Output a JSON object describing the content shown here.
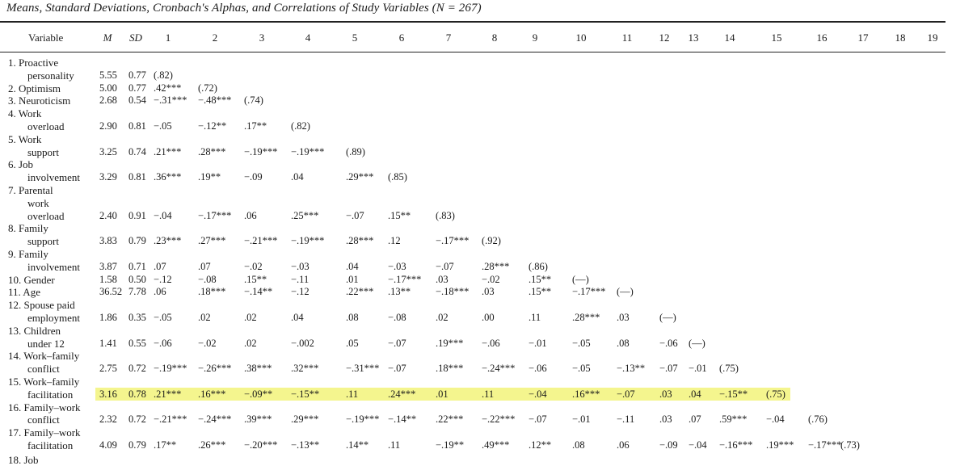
{
  "caption": "Means, Standard Deviations, Cronbach's Alphas, and Correlations of Study Variables (N = 267)",
  "header": [
    "Variable",
    "M",
    "SD",
    "1",
    "2",
    "3",
    "4",
    "5",
    "6",
    "7",
    "8",
    "9",
    "10",
    "11",
    "12",
    "13",
    "14",
    "15",
    "16",
    "17",
    "18",
    "19"
  ],
  "rows": [
    {
      "name_lines": [
        "1.  Proactive",
        "personality"
      ],
      "cells": [
        [
          "5.55",
          "0.77"
        ],
        [
          "(.82)"
        ]
      ]
    },
    {
      "name_lines": [
        "2.  Optimism"
      ],
      "cells": [
        [
          "5.00",
          "0.77"
        ],
        [
          ".42***",
          "(.72)"
        ]
      ]
    },
    {
      "name_lines": [
        "3.  Neuroticism"
      ],
      "cells": [
        [
          "2.68",
          "0.54"
        ],
        [
          "−.31***",
          "−.48***",
          "(.74)"
        ]
      ]
    },
    {
      "name_lines": [
        "4.  Work",
        "overload"
      ],
      "cells": [
        [
          "2.90",
          "0.81"
        ],
        [
          "−.05",
          "−.12**",
          ".17**",
          "(.82)"
        ]
      ]
    },
    {
      "name_lines": [
        "5.  Work",
        "support"
      ],
      "cells": [
        [
          "3.25",
          "0.74"
        ],
        [
          ".21***",
          ".28***",
          "−.19***",
          "−.19***",
          "(.89)"
        ]
      ]
    },
    {
      "name_lines": [
        "6.  Job",
        "involvement"
      ],
      "cells": [
        [
          "3.29",
          "0.81"
        ],
        [
          ".36***",
          ".19**",
          "−.09",
          ".04",
          ".29***",
          "(.85)"
        ]
      ]
    },
    {
      "name_lines": [
        "7.  Parental",
        "work",
        "overload"
      ],
      "cells": [
        [
          "2.40",
          "0.91"
        ],
        [
          "−.04",
          "−.17***",
          ".06",
          ".25***",
          "−.07",
          ".15**",
          "(.83)"
        ]
      ]
    },
    {
      "name_lines": [
        "8.  Family",
        "support"
      ],
      "cells": [
        [
          "3.83",
          "0.79"
        ],
        [
          ".23***",
          ".27***",
          "−.21***",
          "−.19***",
          ".28***",
          ".12",
          "−.17***",
          "(.92)"
        ]
      ]
    },
    {
      "name_lines": [
        "9.  Family",
        "involvement"
      ],
      "cells": [
        [
          "3.87",
          "0.71"
        ],
        [
          ".07",
          ".07",
          "−.02",
          "−.03",
          ".04",
          "−.03",
          "−.07",
          ".28***",
          "(.86)"
        ]
      ]
    },
    {
      "name_lines": [
        "10. Gender"
      ],
      "cells": [
        [
          "1.58",
          "0.50"
        ],
        [
          "−.12",
          "−.08",
          ".15**",
          "−.11",
          ".01",
          "−.17***",
          ".03",
          "−.02",
          ".15**",
          "(—)"
        ]
      ]
    },
    {
      "name_lines": [
        "11. Age"
      ],
      "cells": [
        [
          "36.52",
          "7.78"
        ],
        [
          ".06",
          ".18***",
          "−.14**",
          "−.12",
          ".22***",
          ".13**",
          "−.18***",
          ".03",
          ".15**",
          "−.17***",
          "(—)"
        ]
      ]
    },
    {
      "name_lines": [
        "12. Spouse paid",
        "employment"
      ],
      "cells": [
        [
          "1.86",
          "0.35"
        ],
        [
          "−.05",
          ".02",
          ".02",
          ".04",
          ".08",
          "−.08",
          ".02",
          ".00",
          ".11",
          ".28***",
          ".03",
          "(—)"
        ]
      ]
    },
    {
      "name_lines": [
        "13. Children",
        "under 12"
      ],
      "cells": [
        [
          "1.41",
          "0.55"
        ],
        [
          "−.06",
          "−.02",
          ".02",
          "−.002",
          ".05",
          "−.07",
          ".19***",
          "−.06",
          "−.01",
          "−.05",
          ".08",
          "−.06",
          "(—)"
        ]
      ]
    },
    {
      "name_lines": [
        "14. Work–family",
        "conflict"
      ],
      "cells": [
        [
          "2.75",
          "0.72"
        ],
        [
          "−.19***",
          "−.26***",
          ".38***",
          ".32***",
          "−.31***",
          "−.07",
          ".18***",
          "−.24***",
          "−.06",
          "−.05",
          "−.13**",
          "−.07",
          "−.01",
          "(.75)"
        ]
      ]
    },
    {
      "name_lines": [
        "15. Work–family",
        "facilitation"
      ],
      "cells": [
        [
          "3.16",
          "0.78"
        ],
        [
          ".21***",
          ".16***",
          "−.09**",
          "−.15**",
          ".11",
          ".24***",
          ".01",
          ".11",
          "−.04",
          ".16***",
          "−.07",
          ".03",
          ".04",
          "−.15**",
          "(.75)"
        ]
      ]
    },
    {
      "name_lines": [
        "16. Family–work",
        "conflict"
      ],
      "cells": [
        [
          "2.32",
          "0.72"
        ],
        [
          "−.21***",
          "−.24***",
          ".39***",
          ".29***",
          "−.19***",
          "−.14**",
          ".22***",
          "−.22***",
          "−.07",
          "−.01",
          "−.11",
          ".03",
          ".07",
          ".59***",
          "−.04",
          "(.76)"
        ]
      ]
    },
    {
      "name_lines": [
        "17. Family–work",
        "facilitation"
      ],
      "cells": [
        [
          "4.09",
          "0.79"
        ],
        [
          ".17**",
          ".26***",
          "−.20***",
          "−.13**",
          ".14**",
          ".11",
          "−.19**",
          ".49***",
          ".12**",
          ".08",
          ".06",
          "−.09",
          "−.04",
          "−.16***",
          ".19***",
          "−.17***",
          "(.73)"
        ]
      ]
    }
  ],
  "partial_last_line": "18. Job",
  "highlight_row": 15,
  "highlight_color": "#f4f58e"
}
